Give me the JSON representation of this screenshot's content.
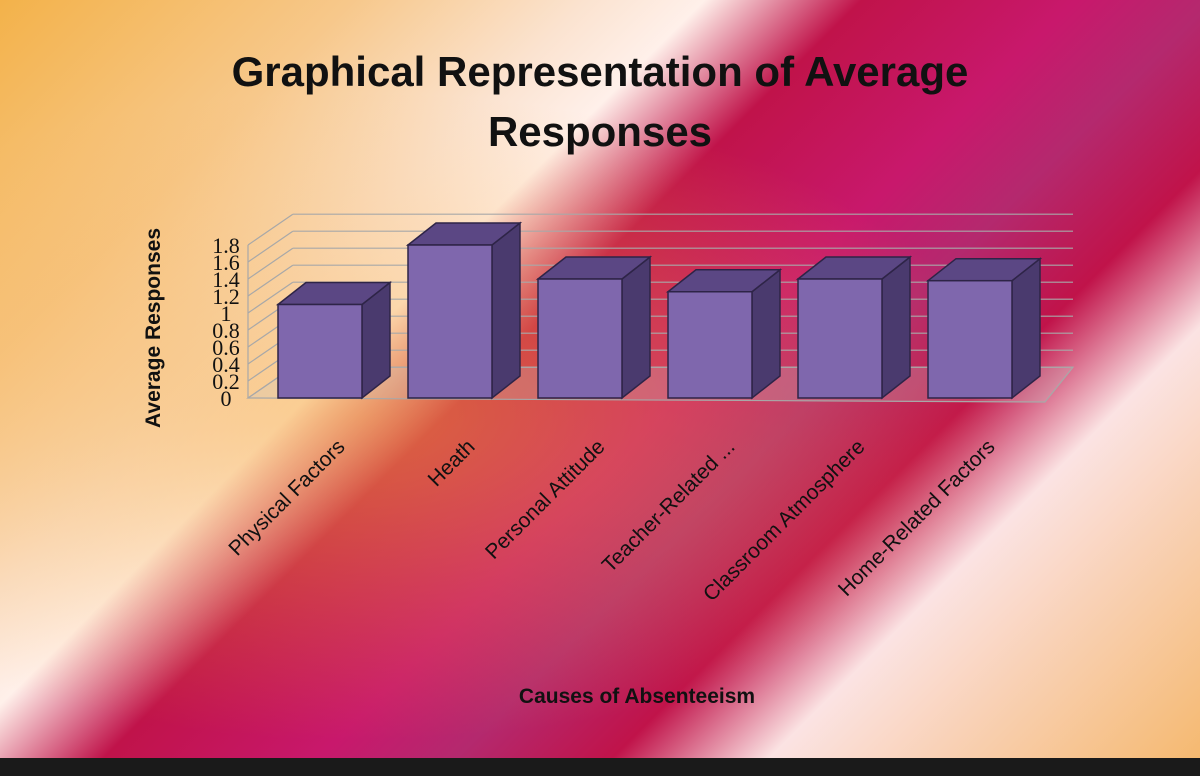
{
  "chart_data": {
    "type": "bar",
    "title": "Graphical Representation of Average Responses",
    "title_lines": [
      "Graphical Representation of Average",
      "Responses"
    ],
    "xlabel": "Causes of Absenteeism",
    "ylabel": "Average Responses",
    "categories": [
      "Physical Factors",
      "Heath",
      "Personal Attitude",
      "Teacher-Related ...",
      "Classroom Atmosphere",
      "Home-Related Factors"
    ],
    "values": [
      1.1,
      1.8,
      1.4,
      1.25,
      1.4,
      1.38
    ],
    "ylim": [
      0,
      1.8
    ],
    "yticks": [
      "0",
      "0.2",
      "0.4",
      "0.6",
      "0.8",
      "1",
      "1.2",
      "1.4",
      "1.6",
      "1.8"
    ],
    "grid": true,
    "legend": "none",
    "style": "3d-column",
    "colors": {
      "bar_front": "#7f67ad",
      "bar_top": "#5b4784",
      "bar_side": "#4a3a6e",
      "grid": "#a8a8a8"
    }
  }
}
